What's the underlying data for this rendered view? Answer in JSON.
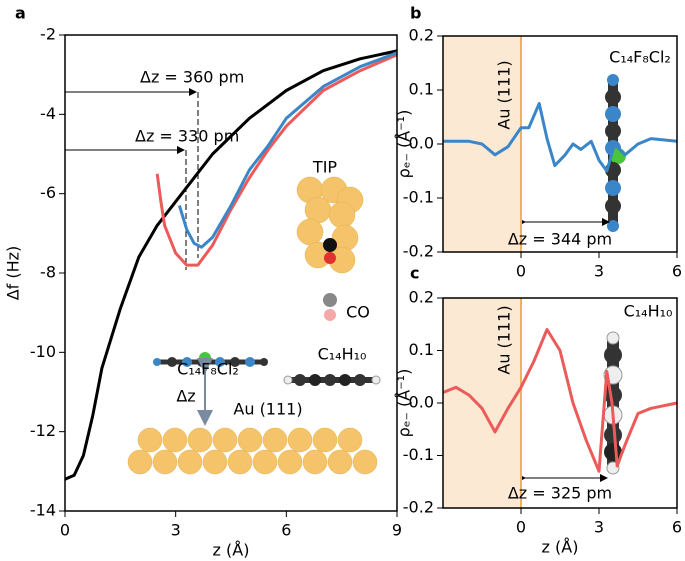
{
  "chart_data": [
    {
      "type": "line",
      "panel": "a",
      "xlabel": "z (Å)",
      "ylabel": "Δf (Hz)",
      "xlim": [
        0,
        9
      ],
      "ylim": [
        -14,
        -2
      ],
      "xticks": [
        0,
        3,
        6,
        9
      ],
      "yticks": [
        -14,
        -12,
        -10,
        -8,
        -6,
        -4,
        -2
      ],
      "series": [
        {
          "color": "#000000",
          "x": [
            0,
            0.25,
            0.5,
            0.75,
            1,
            1.5,
            2,
            2.5,
            3,
            3.5,
            4,
            5,
            6,
            7,
            8,
            9
          ],
          "values": [
            -13.2,
            -13.1,
            -12.6,
            -11.6,
            -10.4,
            -8.9,
            -7.6,
            -6.8,
            -6.2,
            -5.6,
            -5.0,
            -4.1,
            -3.4,
            -2.9,
            -2.6,
            -2.4
          ]
        },
        {
          "color": "#ec5a5a",
          "x": [
            2.5,
            2.6,
            2.7,
            3,
            3.3,
            3.6,
            4,
            4.5,
            5,
            5.5,
            6,
            7,
            8,
            9
          ],
          "values": [
            -5.5,
            -6.2,
            -6.8,
            -7.5,
            -7.8,
            -7.8,
            -7.3,
            -6.4,
            -5.6,
            -4.9,
            -4.3,
            -3.4,
            -2.9,
            -2.5
          ]
        },
        {
          "color": "#3a86c8",
          "x": [
            3.1,
            3.3,
            3.5,
            3.7,
            4,
            4.5,
            5,
            5.5,
            6,
            7,
            8,
            9
          ],
          "values": [
            -6.3,
            -6.9,
            -7.25,
            -7.35,
            -7.1,
            -6.3,
            -5.4,
            -4.8,
            -4.1,
            -3.3,
            -2.8,
            -2.45
          ]
        }
      ],
      "annotations": [
        {
          "text": "Δz = 360 pm",
          "color": "#000000"
        },
        {
          "text": "Δz = 330 pm",
          "color": "#000000"
        },
        {
          "text": "TIP",
          "color": "#000000"
        },
        {
          "text": "CO",
          "color": "#000000"
        },
        {
          "text": "C₁₄F₈Cl₂",
          "color": "#3a86c8"
        },
        {
          "text": "C₁₄H₁₀",
          "color": "#ec5a5a"
        },
        {
          "text": "Δz",
          "color": "#7a8aa0"
        },
        {
          "text": "Au (111)",
          "color": "#000000"
        }
      ]
    },
    {
      "type": "line",
      "panel": "b",
      "ylabel": "ρₑ₋ (Å⁻¹)",
      "xlim": [
        -3,
        6
      ],
      "ylim": [
        -0.2,
        0.2
      ],
      "xticks": [
        0,
        3,
        6
      ],
      "yticks": [
        -0.2,
        -0.1,
        {
          "value": 0,
          "label": "0.0"
        },
        0.1,
        0.2
      ],
      "shade": {
        "xlim": [
          -3,
          0
        ],
        "color": "#fbe9d3",
        "edge": "#f0b060"
      },
      "series": [
        {
          "color": "#3a86c8",
          "x": [
            -3,
            -2,
            -1.5,
            -1,
            -0.5,
            0,
            0.3,
            0.7,
            1,
            1.3,
            1.7,
            2,
            2.3,
            2.7,
            3,
            3.3,
            3.6,
            4,
            4.5,
            5,
            6
          ],
          "values": [
            0.005,
            0.005,
            0,
            -0.02,
            -0.005,
            0.03,
            0.03,
            0.075,
            0.01,
            -0.04,
            -0.02,
            0,
            -0.01,
            0.005,
            -0.03,
            -0.05,
            0,
            -0.02,
            0,
            0.01,
            0.005
          ]
        }
      ],
      "annotations": [
        {
          "text": "Au (111)",
          "color": "#000000"
        },
        {
          "text": "C₁₄F₈Cl₂",
          "color": "#3a86c8"
        },
        {
          "text": "Δz = 344 pm",
          "color": "#000000"
        }
      ]
    },
    {
      "type": "line",
      "panel": "c",
      "xlabel": "z (Å)",
      "ylabel": "ρₑ₋ (Å⁻¹)",
      "xlim": [
        -3,
        6
      ],
      "ylim": [
        -0.2,
        0.2
      ],
      "xticks": [
        0,
        3,
        6
      ],
      "yticks": [
        -0.2,
        -0.1,
        {
          "value": 0,
          "label": "0.0"
        },
        0.1,
        0.2
      ],
      "shade": {
        "xlim": [
          -3,
          0
        ],
        "color": "#fbe9d3",
        "edge": "#f0b060"
      },
      "series": [
        {
          "color": "#ec5a5a",
          "x": [
            -3,
            -2.5,
            -2,
            -1.5,
            -1,
            -0.5,
            0,
            0.5,
            1,
            1.5,
            2,
            2.5,
            3,
            3.3,
            3.5,
            3.7,
            4,
            4.5,
            5,
            6
          ],
          "values": [
            0.02,
            0.03,
            0.015,
            -0.01,
            -0.055,
            -0.01,
            0.03,
            0.08,
            0.14,
            0.1,
            0,
            -0.07,
            -0.13,
            0.06,
            0,
            -0.12,
            -0.08,
            -0.02,
            -0.01,
            0
          ]
        }
      ],
      "annotations": [
        {
          "text": "Au (111)",
          "color": "#000000"
        },
        {
          "text": "C₁₄H₁₀",
          "color": "#ec5a5a"
        },
        {
          "text": "Δz = 325 pm",
          "color": "#000000"
        }
      ]
    }
  ]
}
